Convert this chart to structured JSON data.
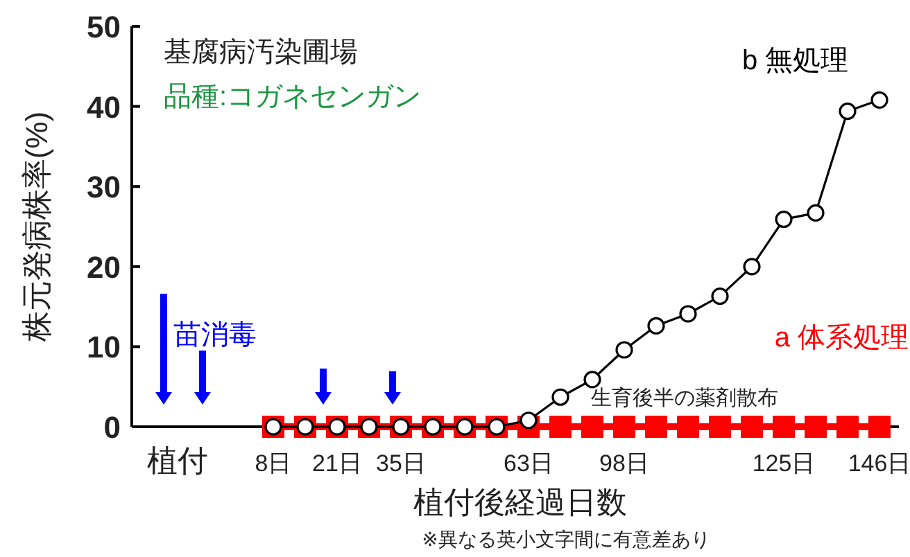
{
  "chart_data": {
    "type": "line",
    "ylabel": "株元発病株率(%)",
    "xlabel": "植付後経過日数",
    "categories": [
      "植付",
      null,
      null,
      "8日",
      null,
      "21日",
      null,
      "35日",
      null,
      null,
      null,
      "63日",
      null,
      null,
      "98日",
      null,
      null,
      null,
      null,
      "125日",
      null,
      null,
      "146日"
    ],
    "ylim": [
      0,
      50
    ],
    "yticks": [
      0,
      10,
      20,
      30,
      40,
      50
    ],
    "series": [
      {
        "name": "a 体系処理",
        "color": "#ff0000",
        "marker": "square",
        "values": [
          null,
          null,
          null,
          0,
          0,
          0,
          0,
          0,
          0,
          0,
          0,
          0,
          0,
          0,
          0,
          0,
          0,
          0,
          0,
          0,
          0,
          0,
          0
        ]
      },
      {
        "name": "b 無処理",
        "color": "#000000",
        "marker": "circle",
        "values": [
          null,
          null,
          null,
          0,
          0,
          0,
          0,
          0,
          0,
          0,
          0,
          0.8,
          3.7,
          5.9,
          9.6,
          12.6,
          14.1,
          16.3,
          20.0,
          25.9,
          26.7,
          39.4,
          40.8
        ]
      }
    ],
    "annotations": [
      "基腐病汚染圃場",
      "品種:コガネセンガン",
      "苗消毒",
      "生育後半の薬剤散布",
      "※異なる英小文字間に有意差あり"
    ]
  }
}
